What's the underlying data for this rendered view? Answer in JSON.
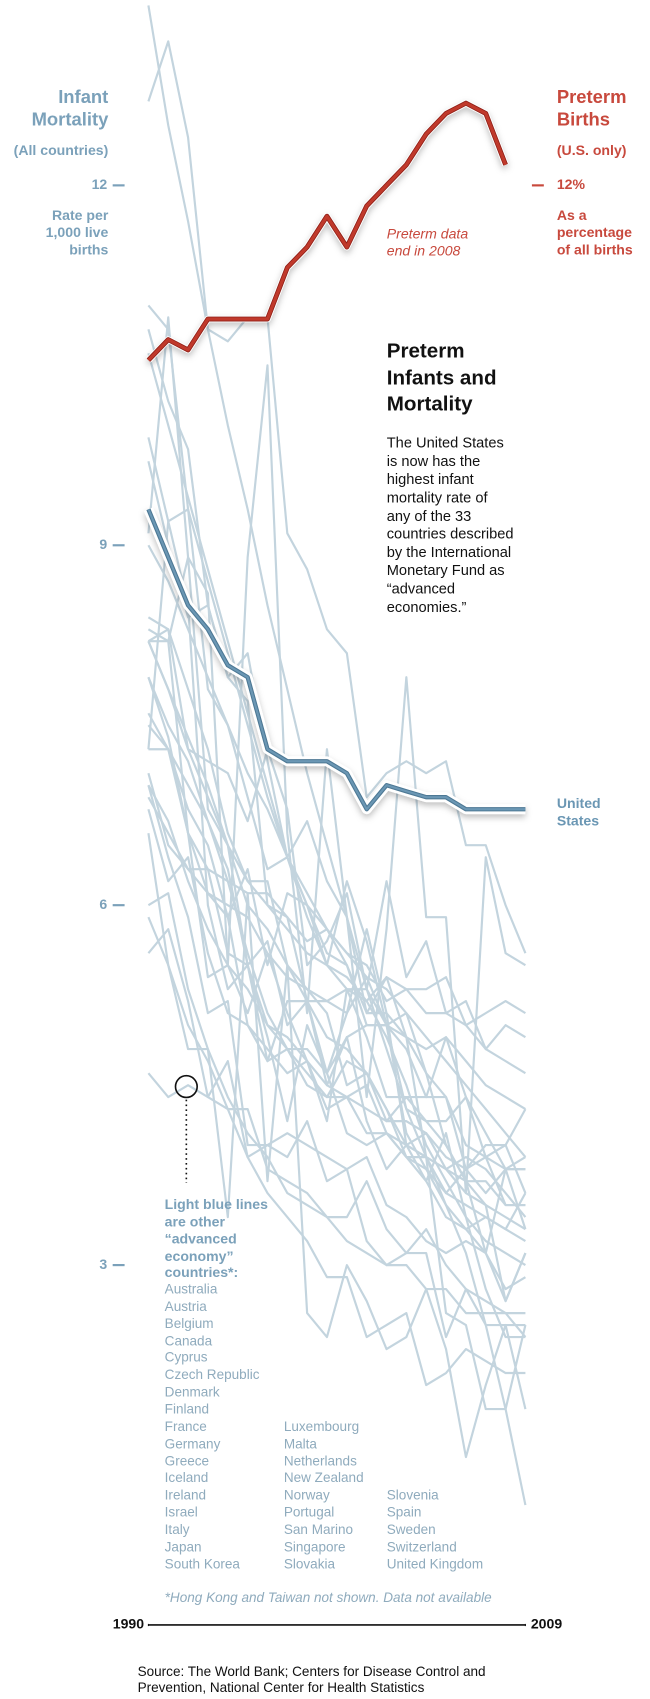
{
  "chart_data": {
    "type": "line",
    "title": "Preterm Infants and Mortality",
    "subtitle": "The United States is now has the highest infant mortality rate of any of the 33 countries described by the International Monetary Fund as “advanced economies.”",
    "y_label": "Infant Mortality",
    "y_note": "(All countries)",
    "y_unit": "Rate per 1,000 live births",
    "y2_note": "(U.S. only)",
    "y2_unit": "As a percentage of all births",
    "annotation": "Preterm data end in 2008",
    "legend_note": "Light blue lines are other “advanced economy” countries*:",
    "footnote": "*Hong Kong and Taiwan not shown.  Data not available",
    "source": "Source: The World Bank; Centers for Disease Control and Prevention, National Center for Health Statistics",
    "x": [
      1990,
      1991,
      1992,
      1993,
      1994,
      1995,
      1996,
      1997,
      1998,
      1999,
      2000,
      2001,
      2002,
      2003,
      2004,
      2005,
      2006,
      2007,
      2008,
      2009
    ],
    "xlim": [
      1990,
      2009
    ],
    "xticks": [
      1990,
      2009
    ],
    "ylim": [
      0,
      13.5
    ],
    "yticks": [
      3,
      6,
      9,
      12
    ],
    "y2lim": [
      -2,
      13.75
    ],
    "y2ticks": [
      {
        "value": 12,
        "label": "12%"
      }
    ],
    "series": [
      {
        "name": "United States",
        "color": "#6b97b4",
        "values": [
          9.3,
          8.9,
          8.5,
          8.3,
          8.0,
          7.9,
          7.3,
          7.2,
          7.2,
          7.2,
          7.1,
          6.8,
          7.0,
          6.95,
          6.9,
          6.9,
          6.8,
          6.8,
          6.8,
          6.8
        ]
      },
      {
        "name": "Preterm Births",
        "color": "#c0392b",
        "axis": "y2",
        "values": [
          10.3,
          10.5,
          10.4,
          10.7,
          10.7,
          10.7,
          10.7,
          11.2,
          11.4,
          11.7,
          11.4,
          11.8,
          12.0,
          12.2,
          12.5,
          12.7,
          12.8,
          12.7,
          12.2,
          null
        ]
      },
      {
        "name": "Australia",
        "color": "#c3d4de",
        "values": [
          8.2,
          7.8,
          7.3,
          6.9,
          6.5,
          6.2,
          6.0,
          5.8,
          5.6,
          5.5,
          5.3,
          5.3,
          5.0,
          4.9,
          4.8,
          4.9,
          4.7,
          4.5,
          4.4,
          4.3
        ]
      },
      {
        "name": "Austria",
        "color": "#c3d4de",
        "values": [
          7.9,
          7.5,
          7.2,
          6.7,
          6.2,
          5.6,
          5.1,
          4.8,
          4.6,
          4.4,
          4.7,
          4.6,
          4.2,
          4.4,
          4.2,
          4.0,
          3.7,
          3.7,
          3.5,
          3.5
        ]
      },
      {
        "name": "Belgium",
        "color": "#c3d4de",
        "values": [
          8.2,
          7.8,
          7.4,
          7.0,
          6.5,
          6.0,
          5.8,
          5.5,
          5.2,
          4.9,
          4.8,
          4.6,
          4.3,
          4.0,
          3.9,
          3.8,
          3.9,
          3.8,
          3.6,
          3.4
        ]
      },
      {
        "name": "Canada",
        "color": "#c3d4de",
        "values": [
          6.9,
          6.6,
          6.3,
          6.1,
          6.0,
          5.9,
          5.6,
          5.4,
          5.3,
          5.2,
          5.3,
          5.2,
          5.4,
          5.3,
          5.3,
          5.4,
          5.0,
          5.1,
          5.2,
          5.1
        ]
      },
      {
        "name": "Cyprus",
        "color": "#c3d4de",
        "values": [
          10.6,
          10.0,
          9.4,
          8.8,
          8.2,
          7.6,
          7.0,
          6.4,
          5.9,
          5.5,
          5.4,
          5.2,
          4.9,
          4.5,
          4.0,
          3.7,
          3.4,
          3.2,
          3.1,
          3.0
        ]
      },
      {
        "name": "Czech Republic",
        "color": "#c3d4de",
        "values": [
          10.8,
          10.2,
          9.8,
          8.5,
          7.9,
          7.7,
          6.0,
          5.9,
          5.2,
          4.6,
          4.1,
          4.0,
          4.1,
          3.9,
          3.7,
          3.4,
          3.3,
          3.1,
          2.8,
          2.9
        ]
      },
      {
        "name": "Denmark",
        "color": "#c3d4de",
        "values": [
          7.5,
          7.3,
          6.6,
          5.4,
          5.5,
          5.1,
          5.6,
          5.1,
          4.7,
          4.2,
          5.3,
          4.9,
          4.4,
          4.4,
          4.4,
          4.4,
          3.8,
          4.0,
          4.0,
          3.6
        ]
      },
      {
        "name": "Finland",
        "color": "#c3d4de",
        "values": [
          5.6,
          5.8,
          5.2,
          4.4,
          4.7,
          3.9,
          4.0,
          3.9,
          4.2,
          3.7,
          3.8,
          3.2,
          3.0,
          3.1,
          3.3,
          3.0,
          2.8,
          2.7,
          2.6,
          2.6
        ]
      },
      {
        "name": "France",
        "color": "#c3d4de",
        "values": [
          7.3,
          7.3,
          6.8,
          6.5,
          5.9,
          5.0,
          4.8,
          4.6,
          4.7,
          4.3,
          4.4,
          4.5,
          4.1,
          4.0,
          3.9,
          3.6,
          3.8,
          3.6,
          3.8,
          3.9
        ]
      },
      {
        "name": "Germany",
        "color": "#c3d4de",
        "values": [
          7.0,
          6.7,
          6.2,
          5.8,
          5.5,
          5.3,
          5.0,
          4.9,
          4.7,
          4.5,
          4.4,
          4.3,
          4.2,
          4.2,
          4.1,
          3.9,
          3.8,
          3.9,
          3.5,
          3.5
        ]
      },
      {
        "name": "Greece",
        "color": "#c3d4de",
        "values": [
          9.7,
          9.0,
          8.4,
          8.5,
          7.9,
          8.1,
          7.2,
          6.4,
          6.7,
          6.2,
          5.9,
          5.1,
          5.1,
          4.0,
          4.1,
          3.8,
          3.7,
          3.5,
          2.7,
          3.1
        ]
      },
      {
        "name": "Iceland",
        "color": "#c3d4de",
        "values": [
          5.9,
          5.5,
          4.8,
          4.8,
          3.4,
          6.1,
          3.7,
          5.5,
          2.6,
          2.4,
          3.0,
          2.7,
          2.3,
          2.4,
          2.8,
          2.3,
          1.4,
          2.0,
          2.5,
          1.8
        ]
      },
      {
        "name": "Ireland",
        "color": "#c3d4de",
        "values": [
          8.2,
          8.2,
          6.6,
          6.1,
          5.9,
          6.3,
          5.5,
          6.1,
          6.0,
          5.5,
          6.2,
          5.7,
          5.0,
          5.1,
          4.6,
          4.0,
          3.7,
          3.1,
          3.8,
          3.3
        ]
      },
      {
        "name": "Israel",
        "color": "#c3d4de",
        "values": [
          9.9,
          9.2,
          9.3,
          7.8,
          7.5,
          6.9,
          6.3,
          6.4,
          6.0,
          5.8,
          5.5,
          5.1,
          5.4,
          4.9,
          4.6,
          4.4,
          4.0,
          3.9,
          3.8,
          3.8
        ]
      },
      {
        "name": "Italy",
        "color": "#c3d4de",
        "values": [
          8.2,
          8.3,
          7.8,
          7.3,
          6.6,
          6.2,
          6.2,
          5.5,
          5.3,
          5.1,
          4.5,
          4.6,
          4.3,
          3.9,
          3.8,
          3.6,
          3.5,
          3.4,
          3.3,
          3.2
        ]
      },
      {
        "name": "Japan",
        "color": "#c3d4de",
        "values": [
          4.6,
          4.4,
          4.5,
          4.4,
          4.3,
          4.3,
          3.8,
          3.7,
          3.6,
          3.4,
          3.2,
          3.1,
          3.0,
          3.0,
          2.8,
          2.8,
          2.6,
          2.6,
          2.6,
          2.4
        ]
      },
      {
        "name": "South Korea",
        "color": "#c3d4de",
        "values": [
          9.0,
          8.7,
          8.3,
          7.9,
          7.5,
          7.1,
          6.8,
          6.4,
          6.1,
          5.8,
          5.6,
          5.4,
          5.3,
          5.1,
          4.9,
          4.7,
          4.5,
          4.3,
          4.1,
          3.9
        ]
      },
      {
        "name": "Luxembourg",
        "color": "#c3d4de",
        "values": [
          7.3,
          9.2,
          8.5,
          6.0,
          5.3,
          5.5,
          4.9,
          4.2,
          5.0,
          4.6,
          5.1,
          5.8,
          5.1,
          4.9,
          3.9,
          2.6,
          2.5,
          1.8,
          1.8,
          2.5
        ]
      },
      {
        "name": "Malta",
        "color": "#c3d4de",
        "values": [
          9.1,
          10.9,
          8.9,
          8.6,
          5.5,
          8.9,
          10.5,
          6.6,
          5.1,
          7.3,
          5.9,
          4.4,
          5.8,
          7.9,
          5.9,
          5.9,
          3.6,
          6.4,
          5.6,
          5.5
        ]
      },
      {
        "name": "Netherlands",
        "color": "#c3d4de",
        "values": [
          7.1,
          6.5,
          6.3,
          6.3,
          5.6,
          5.5,
          5.7,
          5.0,
          5.2,
          5.2,
          5.1,
          5.4,
          5.0,
          4.8,
          4.4,
          4.9,
          4.4,
          4.1,
          3.8,
          3.8
        ]
      },
      {
        "name": "New Zealand",
        "color": "#c3d4de",
        "values": [
          8.4,
          8.3,
          7.3,
          7.2,
          7.1,
          6.7,
          7.3,
          6.8,
          5.5,
          5.7,
          6.1,
          5.3,
          6.2,
          5.4,
          5.7,
          5.1,
          5.2,
          4.8,
          5.0,
          4.9
        ]
      },
      {
        "name": "Norway",
        "color": "#c3d4de",
        "values": [
          7.0,
          6.4,
          5.9,
          5.1,
          5.2,
          4.0,
          4.0,
          4.1,
          4.0,
          3.9,
          3.8,
          3.9,
          3.5,
          3.4,
          3.2,
          3.1,
          3.2,
          3.1,
          2.7,
          3.1
        ]
      },
      {
        "name": "Portugal",
        "color": "#c3d4de",
        "values": [
          11.0,
          10.8,
          9.3,
          8.7,
          8.1,
          7.5,
          6.9,
          6.4,
          6.0,
          5.6,
          5.5,
          5.0,
          5.0,
          4.1,
          3.8,
          3.5,
          3.3,
          3.4,
          3.3,
          3.6
        ]
      },
      {
        "name": "San Marino",
        "color": "#c3d4de",
        "values": [
          13.5,
          12.5,
          11.7,
          10.8,
          10.0,
          9.3,
          8.5,
          7.8,
          7.1,
          6.5,
          5.9,
          5.3,
          4.8,
          4.3,
          3.9,
          3.5,
          3.1,
          2.5,
          1.8,
          1.0
        ]
      },
      {
        "name": "Singapore",
        "color": "#c3d4de",
        "values": [
          6.6,
          5.5,
          5.0,
          4.7,
          4.3,
          3.9,
          3.6,
          3.4,
          3.2,
          2.9,
          2.9,
          2.4,
          2.5,
          2.6,
          2.0,
          2.1,
          2.3,
          2.2,
          2.1,
          2.1
        ]
      },
      {
        "name": "Slovakia",
        "color": "#c3d4de",
        "values": [
          12.7,
          13.2,
          12.4,
          10.8,
          10.7,
          10.9,
          10.9,
          9.1,
          8.8,
          8.3,
          8.1,
          6.9,
          7.1,
          7.2,
          7.1,
          7.2,
          6.5,
          6.5,
          6.0,
          5.6
        ]
      },
      {
        "name": "Slovenia",
        "color": "#c3d4de",
        "values": [
          8.3,
          8.2,
          8.9,
          6.8,
          6.5,
          5.5,
          4.7,
          5.2,
          5.2,
          4.5,
          4.9,
          4.2,
          3.8,
          4.0,
          3.7,
          4.1,
          3.4,
          2.8,
          2.4,
          2.4
        ]
      },
      {
        "name": "Spain",
        "color": "#c3d4de",
        "values": [
          7.6,
          7.3,
          7.0,
          6.7,
          6.3,
          5.5,
          5.0,
          4.8,
          4.5,
          4.4,
          4.4,
          4.1,
          4.1,
          3.9,
          3.9,
          3.8,
          3.6,
          3.5,
          3.4,
          3.3
        ]
      },
      {
        "name": "Sweden",
        "color": "#c3d4de",
        "values": [
          6.0,
          6.1,
          5.3,
          4.8,
          4.4,
          4.1,
          3.9,
          3.6,
          3.5,
          3.4,
          3.4,
          3.7,
          3.3,
          3.1,
          3.1,
          2.4,
          2.8,
          2.5,
          2.5,
          2.5
        ]
      },
      {
        "name": "Switzerland",
        "color": "#c3d4de",
        "values": [
          6.8,
          6.2,
          6.4,
          5.6,
          5.1,
          5.0,
          4.7,
          4.8,
          4.8,
          4.6,
          4.9,
          5.0,
          5.0,
          4.3,
          4.2,
          4.2,
          4.4,
          3.9,
          4.0,
          4.3
        ]
      },
      {
        "name": "United Kingdom",
        "color": "#c3d4de",
        "values": [
          7.9,
          7.4,
          6.6,
          6.3,
          6.2,
          6.1,
          6.1,
          5.9,
          5.7,
          5.8,
          5.6,
          5.5,
          5.2,
          5.3,
          5.1,
          5.1,
          5.0,
          4.8,
          4.7,
          4.6
        ]
      }
    ]
  }
}
